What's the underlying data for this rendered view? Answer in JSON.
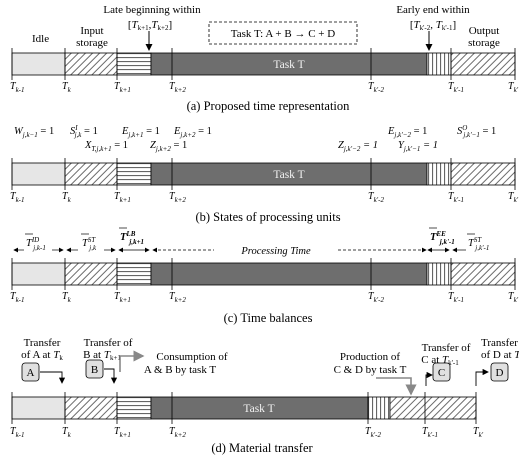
{
  "panels": [
    {
      "caption": "(a) Proposed time representation",
      "task_label": "Task T",
      "ticks": [
        "T_k-1",
        "T_k",
        "T_k+1",
        "T_k+2",
        "T_k'-2",
        "T_k'-1",
        "T_k'"
      ],
      "labels": {
        "idle": "Idle",
        "input_storage": "Input storage",
        "late_beginning": "Late beginning within",
        "late_interval": "[T_k+1, T_k+2]",
        "task_box": "Task T: A + B → C + D",
        "early_end": "Early end within",
        "early_interval": "[T_k'-2, T_k'-1]",
        "output_storage": "Output storage"
      }
    },
    {
      "caption": "(b) States of processing units",
      "task_label": "Task T",
      "ticks": [
        "T_k-1",
        "T_k",
        "T_k+1",
        "T_k+2",
        "T_k'-2",
        "T_k'-1",
        "T_k'"
      ],
      "variables": [
        "W_j,k-1 = 1",
        "S^I_j,k = 1",
        "E_j,k+1 = 1",
        "X_T,j,k+1 = 1",
        "E_j,k+2 = 1",
        "Z_j,k+2 = 1",
        "Z_j,k'-2 = 1",
        "E_j,k'-2 = 1",
        "Y_j,k'-1 = 1",
        "S^O_j,k'-1 = 1"
      ]
    },
    {
      "caption": "(c) Time balances",
      "processing_time": "Processing Time",
      "ticks": [
        "T_k-1",
        "T_k",
        "T_k+1",
        "T_k+2",
        "T_k'-2",
        "T_k'-1",
        "T_k'"
      ],
      "balances": [
        "T̅^ID_j,k-1",
        "T̅^ST_j,k",
        "T̅^LB_j,k+1",
        "T̅^EE_j,k'-1",
        "T̅^ST_j,k'-1"
      ]
    },
    {
      "caption": "(d) Material transfer",
      "task_label": "Task T",
      "ticks": [
        "T_k-1",
        "T_k",
        "T_k+1",
        "T_k+2",
        "T_k'-2",
        "T_k'-1",
        "T_k'"
      ],
      "transfers": {
        "a_title": "Transfer of A at T_k",
        "b_title": "Transfer of B at T_k+1",
        "consumption": "Consumption of A & B by task T",
        "production": "Production of C & D by task T",
        "c_title": "Transfer of C at T_k'-1",
        "d_title": "Transfer of D at T_k'"
      },
      "materials": [
        "A",
        "B",
        "C",
        "D"
      ]
    }
  ]
}
